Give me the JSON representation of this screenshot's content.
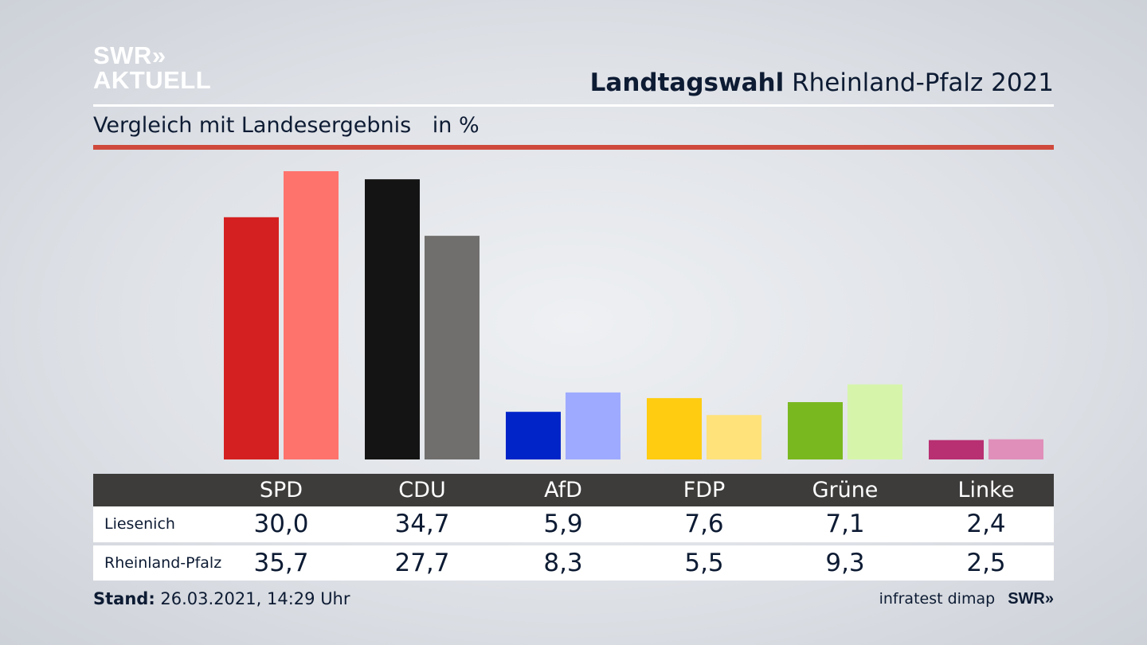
{
  "brand": {
    "logo_line1": "SWR»",
    "logo_line2": "AKTUELL",
    "footer_logo": "SWR»"
  },
  "header": {
    "title_bold": "Landtagswahl",
    "title_rest": "Rheinland-Pfalz 2021",
    "subtitle": "Vergleich mit Landesergebnis",
    "unit": "in %"
  },
  "colors": {
    "accent_rule": "#cf4a3c",
    "table_header_bg": "#3d3c3b"
  },
  "chart_data": {
    "type": "bar",
    "title": "Vergleich mit Landesergebnis",
    "ylabel": "in %",
    "ylim": [
      0,
      35.7
    ],
    "categories": [
      "SPD",
      "CDU",
      "AfD",
      "FDP",
      "Grüne",
      "Linke"
    ],
    "series": [
      {
        "name": "Liesenich",
        "values": [
          30.0,
          34.7,
          5.9,
          7.6,
          7.1,
          2.4
        ],
        "labels": [
          "30,0",
          "34,7",
          "5,9",
          "7,6",
          "7,1",
          "2,4"
        ],
        "colors": [
          "#d42020",
          "#141414",
          "#0024c8",
          "#ffcc11",
          "#7ab820",
          "#b82f72"
        ]
      },
      {
        "name": "Rheinland-Pfalz",
        "values": [
          35.7,
          27.7,
          8.3,
          5.5,
          9.3,
          2.5
        ],
        "labels": [
          "35,7",
          "27,7",
          "8,3",
          "5,5",
          "9,3",
          "2,5"
        ],
        "colors": [
          "#ff736d",
          "#706f6d",
          "#9eaaff",
          "#ffe27a",
          "#d6f5ab",
          "#e08fba"
        ]
      }
    ],
    "grid": false,
    "legend": "table-below"
  },
  "footer": {
    "stand_label": "Stand:",
    "stand_value": "26.03.2021, 14:29 Uhr",
    "source": "infratest dimap"
  }
}
